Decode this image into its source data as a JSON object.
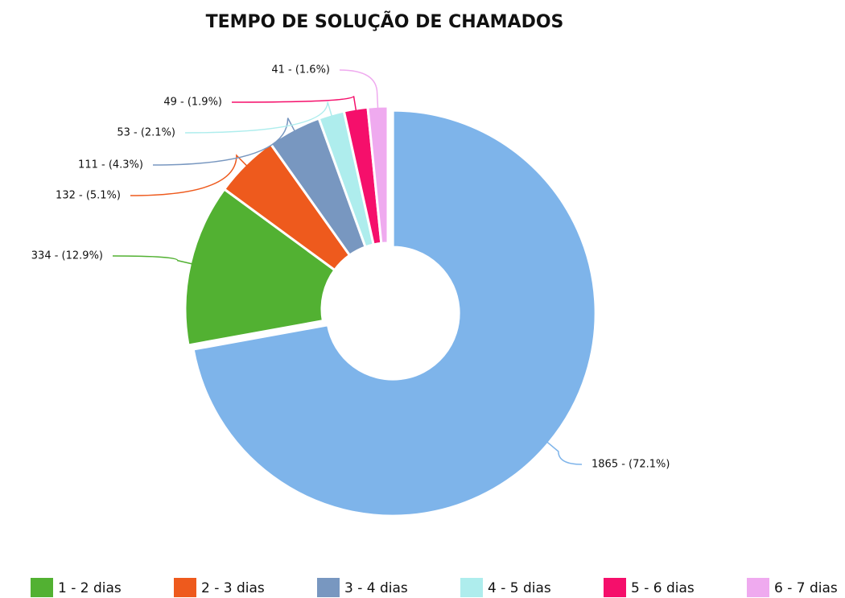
{
  "chart_data": {
    "type": "donut",
    "title": "TEMPO DE SOLUÇÃO DE CHAMADOS",
    "categories": [
      null,
      "1 - 2 dias",
      "2 - 3 dias",
      "3 - 4 dias",
      "4 - 5 dias",
      "5 - 6 dias",
      "6 - 7 dias"
    ],
    "values": [
      1865,
      334,
      132,
      111,
      53,
      49,
      41
    ],
    "value_labels": [
      "1865 - (72.1%)",
      "334 - (12.9%)",
      "132 - (5.1%)",
      "111 - (4.3%)",
      "53 - (2.1%)",
      "49 - (1.9%)",
      "41 - (1.6%)"
    ],
    "colors": [
      "#7eb4ea",
      "#52b132",
      "#ee5a1d",
      "#7897c0",
      "#aeeded",
      "#f50f6b",
      "#efaaef"
    ]
  }
}
